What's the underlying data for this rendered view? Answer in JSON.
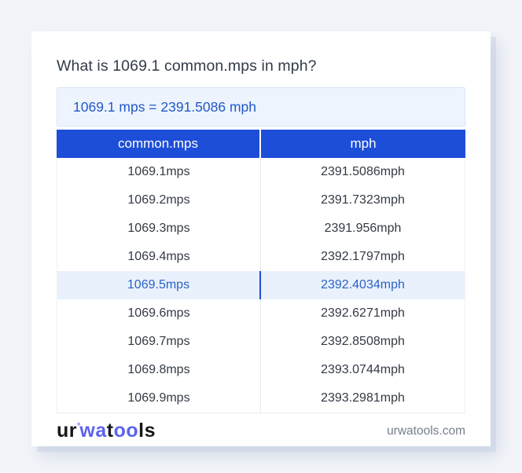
{
  "colors": {
    "header_bg": "#1d4ed8",
    "accent_blue": "#2158c7",
    "highlight_bg": "#e9f1fc",
    "highlight_text": "#2b62c6",
    "logo_blue": "#5c63ee",
    "logo_dark": "#17181c",
    "page_bg": "#f2f4f9"
  },
  "page": {
    "title": "What is 1069.1 common.mps in mph?",
    "result_text": "1069.1 mps = 2391.5086 mph"
  },
  "table": {
    "headers": [
      "common.mps",
      "mph"
    ],
    "rows": [
      {
        "mps": "1069.1mps",
        "mph": "2391.5086mph",
        "highlighted": false
      },
      {
        "mps": "1069.2mps",
        "mph": "2391.7323mph",
        "highlighted": false
      },
      {
        "mps": "1069.3mps",
        "mph": "2391.956mph",
        "highlighted": false
      },
      {
        "mps": "1069.4mps",
        "mph": "2392.1797mph",
        "highlighted": false
      },
      {
        "mps": "1069.5mps",
        "mph": "2392.4034mph",
        "highlighted": true
      },
      {
        "mps": "1069.6mps",
        "mph": "2392.6271mph",
        "highlighted": false
      },
      {
        "mps": "1069.7mps",
        "mph": "2392.8508mph",
        "highlighted": false
      },
      {
        "mps": "1069.8mps",
        "mph": "2393.0744mph",
        "highlighted": false
      },
      {
        "mps": "1069.9mps",
        "mph": "2393.2981mph",
        "highlighted": false
      }
    ]
  },
  "footer": {
    "logo_segments": [
      {
        "text": "ur",
        "color": "#17181c",
        "sup": false
      },
      {
        "text": "°",
        "color": "#5c63ee",
        "sup": true
      },
      {
        "text": "wa",
        "color": "#5c63ee",
        "sup": false
      },
      {
        "text": "t",
        "color": "#17181c",
        "sup": false
      },
      {
        "text": "oo",
        "color": "#5c63ee",
        "sup": false
      },
      {
        "text": "ls",
        "color": "#17181c",
        "sup": false
      }
    ],
    "site": "urwatools.com"
  }
}
